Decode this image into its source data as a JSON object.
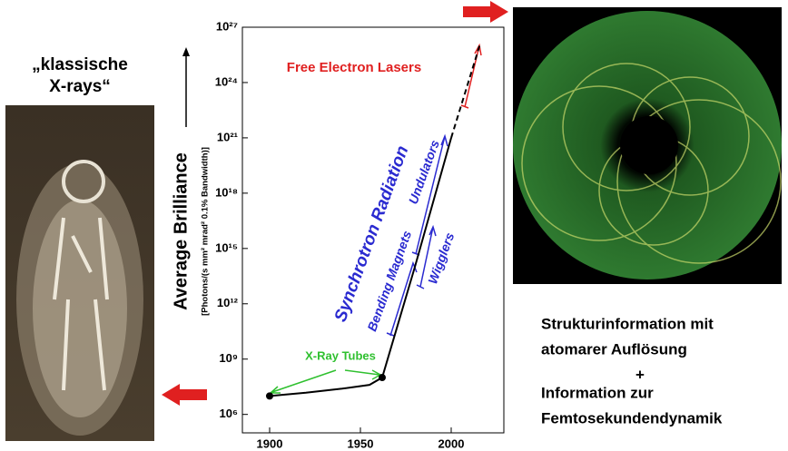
{
  "chart_data": {
    "type": "line",
    "ylabel": "Average Brilliance",
    "ylabel_units": "[Photons/(s mm² mrad² 0.1% Bandwidth)]",
    "x": [
      1900,
      1920,
      1940,
      1955,
      1962,
      1980,
      2000,
      2016
    ],
    "series": [
      {
        "color": "#000000",
        "style": "solid",
        "marker": false,
        "values": [
          10000000,
          15000000,
          25000000,
          40000000,
          100000000,
          100000000000000.0,
          1e+21,
          null
        ]
      },
      {
        "color": "#000000",
        "style": "dashed",
        "marker": false,
        "values": [
          null,
          null,
          null,
          null,
          null,
          null,
          1e+21,
          1.3e+26
        ]
      },
      {
        "color": "#000000",
        "style": "none",
        "marker": true,
        "values": [
          10000000,
          null,
          null,
          null,
          100000000,
          null,
          null,
          null
        ]
      }
    ],
    "ylog": true,
    "xlim": [
      1885,
      2029
    ],
    "xticks": [
      1900,
      1950,
      2000
    ],
    "ylim": [
      100000,
      1e+27
    ],
    "yticks": [
      {
        "value": 1000000,
        "label": "10⁶"
      },
      {
        "value": 1000000000,
        "label": "10⁹"
      },
      {
        "value": 1000000000000.0,
        "label": "10¹²"
      },
      {
        "value": 1000000000000000.0,
        "label": "10¹⁵"
      },
      {
        "value": 1e+18,
        "label": "10¹⁸"
      },
      {
        "value": 1e+21,
        "label": "10²¹"
      },
      {
        "value": 1e+24,
        "label": "10²⁴"
      },
      {
        "value": 1e+27,
        "label": "10²⁷"
      }
    ],
    "annotations": [
      {
        "text": "Free Electron Lasers",
        "color": "#e02020"
      },
      {
        "text": "Synchrotron Radiation",
        "color": "#2a2ad0"
      },
      {
        "text": "Undulators",
        "color": "#2a2ad0"
      },
      {
        "text": "Bending Magnets",
        "color": "#2a2ad0"
      },
      {
        "text": "Wigglers",
        "color": "#2a2ad0"
      },
      {
        "text": "X-Ray Tubes",
        "color": "#2fc02f"
      }
    ]
  },
  "left_caption": [
    "„klassische",
    "X-rays“"
  ],
  "right_caption": [
    "Strukturinformation mit",
    "atomarer Auflösung",
    "+",
    "Information zur",
    "Femtosekundendynamik"
  ]
}
